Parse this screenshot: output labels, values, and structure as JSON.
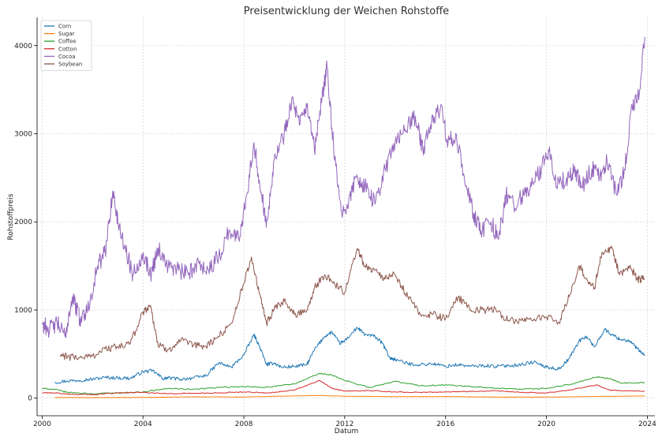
{
  "chart_data": {
    "type": "line",
    "title": "Preisentwicklung der Weichen Rohstoffe",
    "xlabel": "Datum",
    "ylabel": "Rohstoffpreis",
    "xlim": [
      1999.8,
      2024.3
    ],
    "ylim": [
      -200,
      4320
    ],
    "xticks": [
      2000,
      2004,
      2008,
      2012,
      2016,
      2020,
      2024
    ],
    "xtick_labels": [
      "2000",
      "2004",
      "2008",
      "2012",
      "2016",
      "2020",
      "2024"
    ],
    "yticks": [
      0,
      1000,
      2000,
      3000,
      4000
    ],
    "ytick_labels": [
      "0",
      "1000",
      "2000",
      "3000",
      "4000"
    ],
    "grid": true,
    "legend_position": "top-left",
    "series": [
      {
        "name": "Corn",
        "color": "#1f77b4",
        "points": [
          [
            2000.5,
            180
          ],
          [
            2001,
            195
          ],
          [
            2001.5,
            205
          ],
          [
            2002,
            215
          ],
          [
            2002.5,
            235
          ],
          [
            2003,
            230
          ],
          [
            2003.5,
            225
          ],
          [
            2004,
            300
          ],
          [
            2004.4,
            310
          ],
          [
            2004.8,
            220
          ],
          [
            2005,
            230
          ],
          [
            2005.5,
            215
          ],
          [
            2006,
            230
          ],
          [
            2006.5,
            255
          ],
          [
            2007,
            400
          ],
          [
            2007.5,
            350
          ],
          [
            2008,
            490
          ],
          [
            2008.4,
            720
          ],
          [
            2008.6,
            600
          ],
          [
            2008.9,
            380
          ],
          [
            2009.2,
            400
          ],
          [
            2009.5,
            350
          ],
          [
            2010,
            360
          ],
          [
            2010.5,
            380
          ],
          [
            2010.8,
            550
          ],
          [
            2011.2,
            700
          ],
          [
            2011.5,
            750
          ],
          [
            2011.8,
            620
          ],
          [
            2012,
            650
          ],
          [
            2012.5,
            800
          ],
          [
            2012.8,
            720
          ],
          [
            2013.2,
            700
          ],
          [
            2013.5,
            620
          ],
          [
            2013.8,
            450
          ],
          [
            2014,
            440
          ],
          [
            2014.5,
            390
          ],
          [
            2015,
            380
          ],
          [
            2015.5,
            390
          ],
          [
            2016,
            360
          ],
          [
            2016.5,
            380
          ],
          [
            2017,
            360
          ],
          [
            2017.5,
            370
          ],
          [
            2018,
            360
          ],
          [
            2018.5,
            370
          ],
          [
            2019,
            380
          ],
          [
            2019.5,
            410
          ],
          [
            2020,
            350
          ],
          [
            2020.5,
            330
          ],
          [
            2020.9,
            450
          ],
          [
            2021.3,
            650
          ],
          [
            2021.6,
            700
          ],
          [
            2021.9,
            580
          ],
          [
            2022.3,
            780
          ],
          [
            2022.6,
            720
          ],
          [
            2022.9,
            670
          ],
          [
            2023.3,
            650
          ],
          [
            2023.6,
            560
          ],
          [
            2023.9,
            480
          ]
        ]
      },
      {
        "name": "Sugar",
        "color": "#ff7f0e",
        "points": [
          [
            2000.5,
            8
          ],
          [
            2002,
            6
          ],
          [
            2004,
            8
          ],
          [
            2006,
            15
          ],
          [
            2008,
            13
          ],
          [
            2010,
            25
          ],
          [
            2011,
            30
          ],
          [
            2012,
            22
          ],
          [
            2014,
            17
          ],
          [
            2016,
            18
          ],
          [
            2018,
            12
          ],
          [
            2020,
            12
          ],
          [
            2022,
            19
          ],
          [
            2023.9,
            25
          ]
        ]
      },
      {
        "name": "Coffee",
        "color": "#2ca02c",
        "points": [
          [
            2000,
            110
          ],
          [
            2000.5,
            100
          ],
          [
            2001,
            65
          ],
          [
            2002,
            50
          ],
          [
            2003,
            60
          ],
          [
            2004,
            70
          ],
          [
            2005,
            110
          ],
          [
            2006,
            100
          ],
          [
            2007,
            120
          ],
          [
            2008,
            130
          ],
          [
            2009,
            125
          ],
          [
            2010,
            160
          ],
          [
            2011,
            280
          ],
          [
            2011.5,
            260
          ],
          [
            2012,
            200
          ],
          [
            2013,
            120
          ],
          [
            2014,
            190
          ],
          [
            2015,
            140
          ],
          [
            2016,
            150
          ],
          [
            2017,
            130
          ],
          [
            2018,
            110
          ],
          [
            2019,
            100
          ],
          [
            2020,
            110
          ],
          [
            2021,
            160
          ],
          [
            2022,
            240
          ],
          [
            2022.5,
            220
          ],
          [
            2023,
            170
          ],
          [
            2023.9,
            180
          ]
        ]
      },
      {
        "name": "Cotton",
        "color": "#d62728",
        "points": [
          [
            2000,
            60
          ],
          [
            2000.5,
            60
          ],
          [
            2001,
            45
          ],
          [
            2002,
            40
          ],
          [
            2003,
            60
          ],
          [
            2004,
            65
          ],
          [
            2005,
            50
          ],
          [
            2006,
            55
          ],
          [
            2007,
            60
          ],
          [
            2008,
            70
          ],
          [
            2009,
            60
          ],
          [
            2010,
            90
          ],
          [
            2011,
            200
          ],
          [
            2011.5,
            110
          ],
          [
            2012,
            80
          ],
          [
            2013,
            85
          ],
          [
            2014,
            70
          ],
          [
            2015,
            65
          ],
          [
            2016,
            70
          ],
          [
            2017,
            75
          ],
          [
            2018,
            85
          ],
          [
            2019,
            65
          ],
          [
            2020,
            60
          ],
          [
            2021,
            95
          ],
          [
            2022,
            150
          ],
          [
            2022.5,
            90
          ],
          [
            2023,
            85
          ],
          [
            2023.9,
            80
          ]
        ]
      },
      {
        "name": "Cocoa",
        "color": "#9467bd",
        "points": [
          [
            2000,
            850
          ],
          [
            2000.3,
            780
          ],
          [
            2000.6,
            850
          ],
          [
            2000.9,
            700
          ],
          [
            2001.2,
            1150
          ],
          [
            2001.5,
            900
          ],
          [
            2001.8,
            1000
          ],
          [
            2002.2,
            1500
          ],
          [
            2002.5,
            1650
          ],
          [
            2002.8,
            2350
          ],
          [
            2003,
            2000
          ],
          [
            2003.3,
            1700
          ],
          [
            2003.6,
            1400
          ],
          [
            2004,
            1650
          ],
          [
            2004.3,
            1400
          ],
          [
            2004.6,
            1700
          ],
          [
            2005,
            1500
          ],
          [
            2005.4,
            1450
          ],
          [
            2005.8,
            1400
          ],
          [
            2006.2,
            1550
          ],
          [
            2006.6,
            1450
          ],
          [
            2007,
            1600
          ],
          [
            2007.4,
            1900
          ],
          [
            2007.8,
            1800
          ],
          [
            2008.1,
            2300
          ],
          [
            2008.4,
            2900
          ],
          [
            2008.7,
            2300
          ],
          [
            2008.9,
            2000
          ],
          [
            2009.2,
            2700
          ],
          [
            2009.6,
            3000
          ],
          [
            2009.9,
            3400
          ],
          [
            2010.2,
            3100
          ],
          [
            2010.5,
            3300
          ],
          [
            2010.8,
            2800
          ],
          [
            2011.1,
            3400
          ],
          [
            2011.3,
            3750
          ],
          [
            2011.6,
            2700
          ],
          [
            2011.9,
            2050
          ],
          [
            2012.2,
            2300
          ],
          [
            2012.5,
            2500
          ],
          [
            2012.8,
            2400
          ],
          [
            2013.2,
            2200
          ],
          [
            2013.6,
            2600
          ],
          [
            2014,
            2900
          ],
          [
            2014.4,
            3050
          ],
          [
            2014.8,
            3200
          ],
          [
            2015.1,
            2800
          ],
          [
            2015.4,
            3100
          ],
          [
            2015.8,
            3300
          ],
          [
            2016.1,
            2900
          ],
          [
            2016.4,
            3000
          ],
          [
            2016.8,
            2400
          ],
          [
            2017.1,
            2100
          ],
          [
            2017.4,
            1900
          ],
          [
            2017.8,
            2000
          ],
          [
            2018.1,
            1800
          ],
          [
            2018.4,
            2300
          ],
          [
            2018.7,
            2200
          ],
          [
            2019.1,
            2300
          ],
          [
            2019.4,
            2400
          ],
          [
            2019.8,
            2600
          ],
          [
            2020.1,
            2800
          ],
          [
            2020.4,
            2400
          ],
          [
            2020.8,
            2500
          ],
          [
            2021.1,
            2600
          ],
          [
            2021.4,
            2400
          ],
          [
            2021.8,
            2600
          ],
          [
            2022.1,
            2500
          ],
          [
            2022.4,
            2700
          ],
          [
            2022.8,
            2300
          ],
          [
            2023.1,
            2600
          ],
          [
            2023.4,
            3300
          ],
          [
            2023.7,
            3500
          ],
          [
            2023.9,
            4100
          ]
        ]
      },
      {
        "name": "Soybean",
        "color": "#8c564b",
        "points": [
          [
            2000.7,
            480
          ],
          [
            2001,
            470
          ],
          [
            2001.5,
            460
          ],
          [
            2002,
            480
          ],
          [
            2002.5,
            560
          ],
          [
            2003,
            580
          ],
          [
            2003.5,
            620
          ],
          [
            2004,
            980
          ],
          [
            2004.3,
            1050
          ],
          [
            2004.6,
            600
          ],
          [
            2005,
            550
          ],
          [
            2005.5,
            650
          ],
          [
            2006,
            600
          ],
          [
            2006.5,
            590
          ],
          [
            2007,
            700
          ],
          [
            2007.5,
            850
          ],
          [
            2008,
            1300
          ],
          [
            2008.3,
            1600
          ],
          [
            2008.6,
            1200
          ],
          [
            2008.9,
            850
          ],
          [
            2009.2,
            1000
          ],
          [
            2009.6,
            1100
          ],
          [
            2010,
            950
          ],
          [
            2010.5,
            1000
          ],
          [
            2010.8,
            1250
          ],
          [
            2011.2,
            1400
          ],
          [
            2011.6,
            1300
          ],
          [
            2012,
            1200
          ],
          [
            2012.5,
            1700
          ],
          [
            2012.8,
            1500
          ],
          [
            2013.2,
            1450
          ],
          [
            2013.6,
            1350
          ],
          [
            2014,
            1400
          ],
          [
            2014.5,
            1150
          ],
          [
            2015,
            950
          ],
          [
            2015.5,
            950
          ],
          [
            2016,
            900
          ],
          [
            2016.5,
            1150
          ],
          [
            2017,
            1000
          ],
          [
            2017.5,
            1000
          ],
          [
            2018,
            1000
          ],
          [
            2018.5,
            880
          ],
          [
            2019,
            880
          ],
          [
            2019.5,
            900
          ],
          [
            2020,
            920
          ],
          [
            2020.5,
            860
          ],
          [
            2020.9,
            1150
          ],
          [
            2021.3,
            1500
          ],
          [
            2021.6,
            1350
          ],
          [
            2021.9,
            1250
          ],
          [
            2022.2,
            1650
          ],
          [
            2022.6,
            1700
          ],
          [
            2022.9,
            1400
          ],
          [
            2023.3,
            1500
          ],
          [
            2023.6,
            1350
          ],
          [
            2023.9,
            1350
          ]
        ]
      }
    ]
  }
}
